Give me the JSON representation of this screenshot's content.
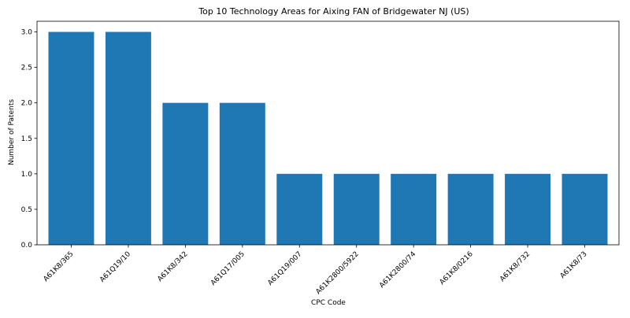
{
  "chart_data": {
    "type": "bar",
    "title": "Top 10 Technology Areas for Aixing FAN of Bridgewater NJ (US)",
    "xlabel": "CPC Code",
    "ylabel": "Number of Patents",
    "categories": [
      "A61K8/365",
      "A61Q19/10",
      "A61K8/342",
      "A61Q17/005",
      "A61Q19/007",
      "A61K2800/5922",
      "A61K2800/74",
      "A61K8/0216",
      "A61K8/732",
      "A61K8/73"
    ],
    "values": [
      3,
      3,
      2,
      2,
      1,
      1,
      1,
      1,
      1,
      1
    ],
    "ylim": [
      0,
      3.15
    ],
    "yticks": [
      "0.0",
      "0.5",
      "1.0",
      "1.5",
      "2.0",
      "2.5",
      "3.0"
    ],
    "grid": false,
    "bar_color": "#1f77b4"
  }
}
